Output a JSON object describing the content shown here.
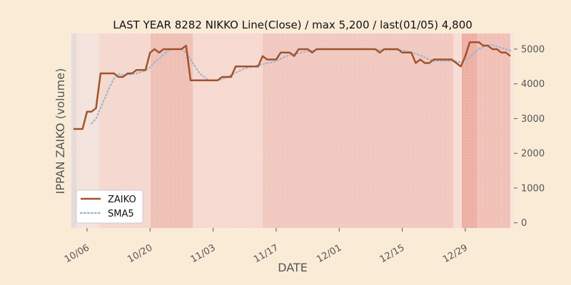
{
  "chart_data": {
    "type": "line",
    "title": "LAST YEAR 8282 NIKKO Line(Close) / max 5,200 / last(01/05) 4,800",
    "xlabel": "DATE",
    "ylabel": "IPPAN ZAIKO (volume)",
    "x_tick_labels": [
      "10/06",
      "10/20",
      "11/03",
      "11/17",
      "12/01",
      "12/15",
      "12/29"
    ],
    "y_ticks": [
      0,
      1000,
      2000,
      3000,
      4000,
      5000
    ],
    "y_tick_labels": [
      "0",
      "1000",
      "2000",
      "3000",
      "4000",
      "5000"
    ],
    "ylim": [
      -150,
      5450
    ],
    "grid": false,
    "legend_position": "lower-left",
    "colors": {
      "background": "#faebd7",
      "series_close": "#a0522d",
      "series_sma": "#9fb6cd",
      "text": "#555555",
      "title": "#111111"
    },
    "series": [
      {
        "name": "ZAIKO",
        "style": "solid",
        "values": [
          [
            0,
            2700
          ],
          [
            2,
            2700
          ],
          [
            3,
            3200
          ],
          [
            4,
            3200
          ],
          [
            5,
            3300
          ],
          [
            6,
            4300
          ],
          [
            9,
            4300
          ],
          [
            10,
            4200
          ],
          [
            11,
            4200
          ],
          [
            12,
            4300
          ],
          [
            13,
            4300
          ],
          [
            14,
            4400
          ],
          [
            16,
            4400
          ],
          [
            17,
            4900
          ],
          [
            18,
            5000
          ],
          [
            19,
            4900
          ],
          [
            20,
            5000
          ],
          [
            24,
            5000
          ],
          [
            25,
            5100
          ],
          [
            26,
            4100
          ],
          [
            32,
            4100
          ],
          [
            33,
            4200
          ],
          [
            35,
            4200
          ],
          [
            36,
            4500
          ],
          [
            41,
            4500
          ],
          [
            42,
            4800
          ],
          [
            43,
            4700
          ],
          [
            45,
            4700
          ],
          [
            46,
            4900
          ],
          [
            48,
            4900
          ],
          [
            49,
            4800
          ],
          [
            50,
            5000
          ],
          [
            52,
            5000
          ],
          [
            53,
            4900
          ],
          [
            54,
            5000
          ],
          [
            67,
            5000
          ],
          [
            68,
            4900
          ],
          [
            69,
            5000
          ],
          [
            72,
            5000
          ],
          [
            73,
            4900
          ],
          [
            75,
            4900
          ],
          [
            76,
            4600
          ],
          [
            77,
            4700
          ],
          [
            78,
            4600
          ],
          [
            79,
            4600
          ],
          [
            80,
            4700
          ],
          [
            84,
            4700
          ],
          [
            86,
            4500
          ],
          [
            87,
            4800
          ],
          [
            88,
            5200
          ],
          [
            90,
            5200
          ],
          [
            91,
            5100
          ],
          [
            92,
            5100
          ],
          [
            93,
            5000
          ],
          [
            94,
            5000
          ],
          [
            95,
            4900
          ],
          [
            96,
            4900
          ],
          [
            97,
            4800
          ]
        ]
      },
      {
        "name": "SMA5",
        "style": "dotted",
        "values": [
          [
            4,
            2860
          ],
          [
            5,
            3000
          ],
          [
            6,
            3300
          ],
          [
            7,
            3600
          ],
          [
            8,
            3900
          ],
          [
            9,
            4160
          ],
          [
            10,
            4280
          ],
          [
            11,
            4260
          ],
          [
            12,
            4260
          ],
          [
            13,
            4280
          ],
          [
            14,
            4300
          ],
          [
            15,
            4340
          ],
          [
            16,
            4380
          ],
          [
            17,
            4480
          ],
          [
            18,
            4620
          ],
          [
            19,
            4720
          ],
          [
            20,
            4840
          ],
          [
            21,
            4960
          ],
          [
            22,
            5000
          ],
          [
            23,
            5000
          ],
          [
            24,
            5000
          ],
          [
            25,
            4900
          ],
          [
            26,
            4700
          ],
          [
            27,
            4500
          ],
          [
            28,
            4300
          ],
          [
            29,
            4200
          ],
          [
            30,
            4100
          ],
          [
            32,
            4100
          ],
          [
            33,
            4140
          ],
          [
            34,
            4180
          ],
          [
            35,
            4260
          ],
          [
            36,
            4320
          ],
          [
            37,
            4380
          ],
          [
            38,
            4440
          ],
          [
            39,
            4480
          ],
          [
            40,
            4500
          ],
          [
            41,
            4540
          ],
          [
            42,
            4560
          ],
          [
            43,
            4600
          ],
          [
            44,
            4620
          ],
          [
            45,
            4660
          ],
          [
            46,
            4720
          ],
          [
            47,
            4780
          ],
          [
            48,
            4840
          ],
          [
            49,
            4860
          ],
          [
            50,
            4880
          ],
          [
            51,
            4920
          ],
          [
            52,
            4940
          ],
          [
            53,
            4960
          ],
          [
            54,
            4980
          ],
          [
            55,
            5000
          ],
          [
            67,
            5000
          ],
          [
            68,
            4980
          ],
          [
            69,
            4980
          ],
          [
            72,
            4980
          ],
          [
            73,
            4960
          ],
          [
            74,
            4940
          ],
          [
            75,
            4920
          ],
          [
            76,
            4860
          ],
          [
            77,
            4820
          ],
          [
            78,
            4760
          ],
          [
            79,
            4700
          ],
          [
            80,
            4660
          ],
          [
            81,
            4660
          ],
          [
            84,
            4660
          ],
          [
            85,
            4640
          ],
          [
            86,
            4620
          ],
          [
            87,
            4680
          ],
          [
            88,
            4760
          ],
          [
            89,
            4900
          ],
          [
            90,
            5000
          ],
          [
            91,
            5060
          ],
          [
            92,
            5120
          ],
          [
            93,
            5120
          ],
          [
            94,
            5080
          ],
          [
            95,
            5040
          ],
          [
            96,
            5000
          ],
          [
            97,
            4960
          ]
        ]
      }
    ]
  }
}
